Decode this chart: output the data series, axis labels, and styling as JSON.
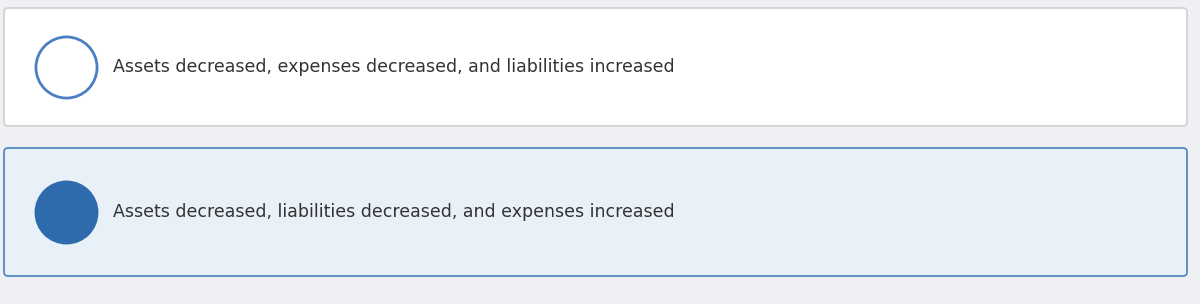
{
  "options": [
    {
      "text": "Assets decreased, expenses decreased, and liabilities increased",
      "selected": false,
      "box_bg": "#ffffff",
      "box_edge": "#d0d0d0",
      "circle_fill": "#ffffff",
      "circle_edge": "#4a7fc1",
      "circle_lw": 2.0
    },
    {
      "text": "Assets decreased, liabilities decreased, and expenses increased",
      "selected": true,
      "box_bg": "#e8f0f8",
      "box_edge": "#4a7fc1",
      "circle_fill": "#2e6bad",
      "circle_edge": "#2e6bad",
      "circle_lw": 2.0
    }
  ],
  "bg_color": "#eef0f3",
  "text_color": "#333333",
  "font_size": 12.5,
  "fig_width": 12.0,
  "fig_height": 3.04,
  "dpi": 100
}
